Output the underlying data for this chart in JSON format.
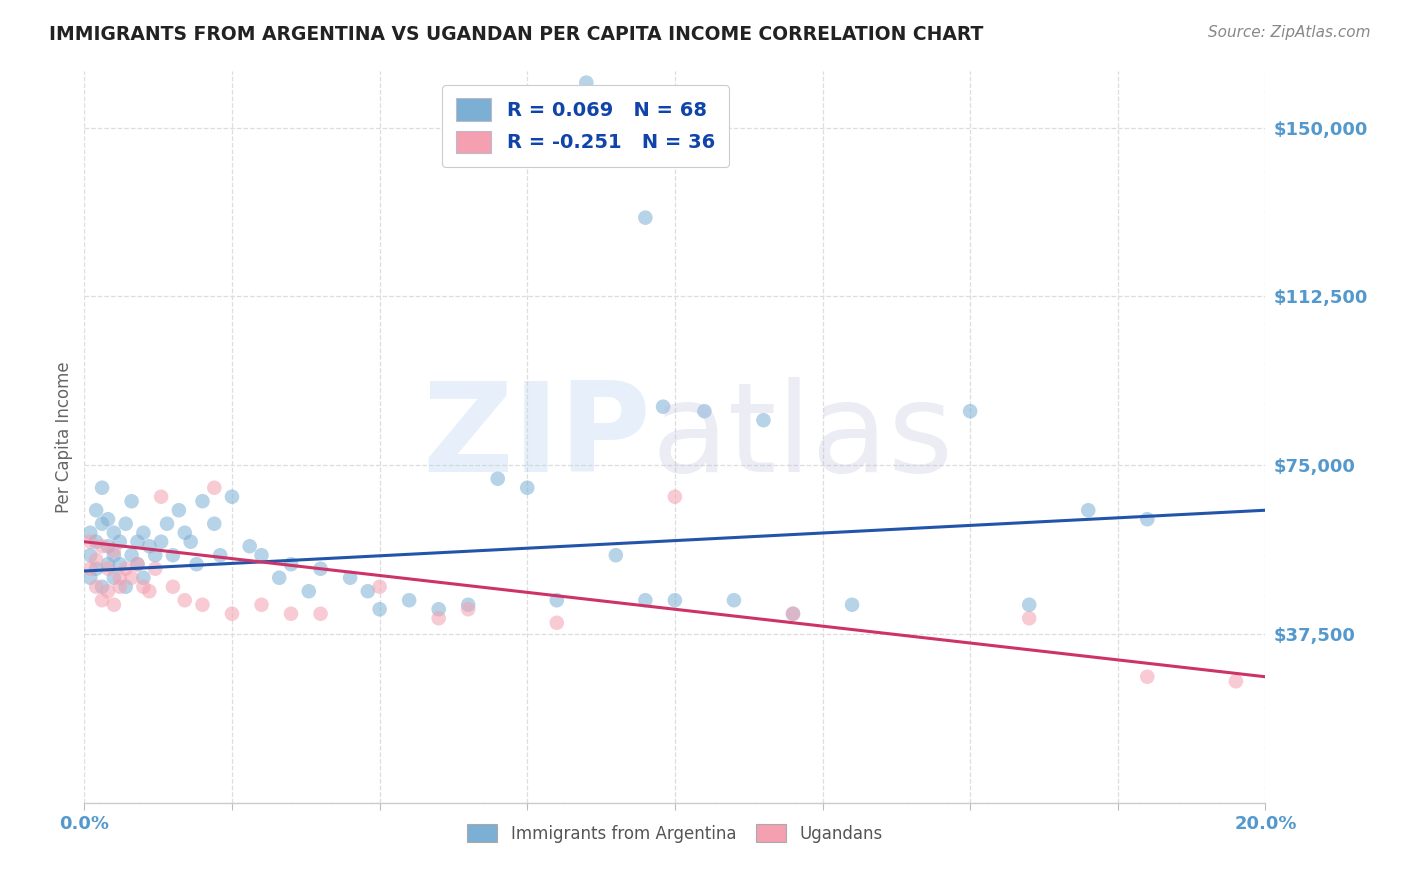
{
  "title": "IMMIGRANTS FROM ARGENTINA VS UGANDAN PER CAPITA INCOME CORRELATION CHART",
  "source": "Source: ZipAtlas.com",
  "ylabel": "Per Capita Income",
  "xlim": [
    0.0,
    0.2
  ],
  "ylim": [
    0,
    162500
  ],
  "yticks": [
    0,
    37500,
    75000,
    112500,
    150000
  ],
  "ytick_labels": [
    "",
    "$37,500",
    "$75,000",
    "$112,500",
    "$150,000"
  ],
  "legend_label1": "Immigrants from Argentina",
  "legend_label2": "Ugandans",
  "R1": 0.069,
  "N1": 68,
  "R2": -0.251,
  "N2": 36,
  "blue_color": "#7BAFD4",
  "pink_color": "#F4A0B0",
  "blue_line_color": "#2255AA",
  "pink_line_color": "#CC3366",
  "title_color": "#222222",
  "source_color": "#888888",
  "axis_label_color": "#666666",
  "tick_color": "#5599CC",
  "grid_color": "#DDDDDD",
  "legend_text_color": "#1144AA",
  "background_color": "#FFFFFF",
  "blue_scatter_x": [
    0.001,
    0.001,
    0.001,
    0.002,
    0.002,
    0.002,
    0.003,
    0.003,
    0.003,
    0.004,
    0.004,
    0.004,
    0.005,
    0.005,
    0.005,
    0.006,
    0.006,
    0.007,
    0.007,
    0.008,
    0.008,
    0.009,
    0.009,
    0.01,
    0.01,
    0.011,
    0.012,
    0.013,
    0.014,
    0.015,
    0.016,
    0.017,
    0.018,
    0.019,
    0.02,
    0.022,
    0.023,
    0.025,
    0.028,
    0.03,
    0.033,
    0.035,
    0.038,
    0.04,
    0.045,
    0.048,
    0.05,
    0.055,
    0.06,
    0.065,
    0.07,
    0.075,
    0.08,
    0.09,
    0.095,
    0.1,
    0.11,
    0.12,
    0.13,
    0.15,
    0.16,
    0.17,
    0.18,
    0.098,
    0.105,
    0.115,
    0.095,
    0.085
  ],
  "blue_scatter_y": [
    55000,
    60000,
    50000,
    58000,
    52000,
    65000,
    62000,
    48000,
    70000,
    57000,
    53000,
    63000,
    55000,
    50000,
    60000,
    58000,
    53000,
    62000,
    48000,
    55000,
    67000,
    53000,
    58000,
    60000,
    50000,
    57000,
    55000,
    58000,
    62000,
    55000,
    65000,
    60000,
    58000,
    53000,
    67000,
    62000,
    55000,
    68000,
    57000,
    55000,
    50000,
    53000,
    47000,
    52000,
    50000,
    47000,
    43000,
    45000,
    43000,
    44000,
    72000,
    70000,
    45000,
    55000,
    45000,
    45000,
    45000,
    42000,
    44000,
    87000,
    44000,
    65000,
    63000,
    88000,
    87000,
    85000,
    130000,
    160000
  ],
  "pink_scatter_x": [
    0.001,
    0.001,
    0.002,
    0.002,
    0.003,
    0.003,
    0.004,
    0.004,
    0.005,
    0.005,
    0.006,
    0.006,
    0.007,
    0.008,
    0.009,
    0.01,
    0.011,
    0.012,
    0.013,
    0.015,
    0.017,
    0.02,
    0.022,
    0.025,
    0.03,
    0.035,
    0.04,
    0.05,
    0.06,
    0.065,
    0.08,
    0.1,
    0.12,
    0.16,
    0.18,
    0.195
  ],
  "pink_scatter_y": [
    58000,
    52000,
    54000,
    48000,
    57000,
    45000,
    52000,
    47000,
    56000,
    44000,
    50000,
    48000,
    52000,
    50000,
    53000,
    48000,
    47000,
    52000,
    68000,
    48000,
    45000,
    44000,
    70000,
    42000,
    44000,
    42000,
    42000,
    48000,
    41000,
    43000,
    40000,
    68000,
    42000,
    41000,
    28000,
    27000
  ],
  "blue_trendline_x": [
    0.0,
    0.2
  ],
  "blue_trendline_y": [
    51500,
    65000
  ],
  "pink_trendline_x": [
    0.0,
    0.2
  ],
  "pink_trendline_y": [
    58000,
    28000
  ]
}
